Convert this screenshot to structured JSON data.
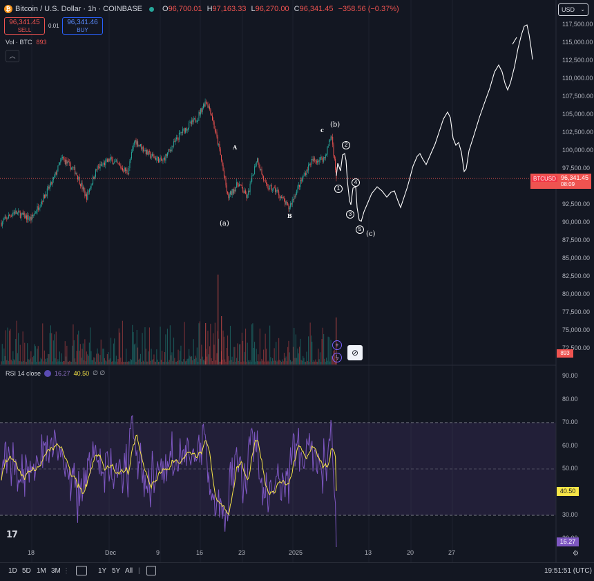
{
  "header": {
    "coin_icon": "bitcoin-icon",
    "coin_glyph": "₿",
    "title": "Bitcoin / U.S. Dollar · 1h · COINBASE",
    "ohlc": {
      "o_label": "O",
      "o": "96,700.01",
      "h_label": "H",
      "h": "97,163.33",
      "l_label": "L",
      "l": "96,270.00",
      "c_label": "C",
      "c": "96,341.45",
      "change": "−358.56 (−0.37%)"
    },
    "sell": {
      "price": "96,341.45",
      "label": "SELL"
    },
    "buy": {
      "price": "96,341.46",
      "label": "BUY"
    },
    "spread": "0.01",
    "volume": {
      "label": "Vol · BTC",
      "value": "893"
    }
  },
  "currency_select": {
    "value": "USD",
    "icon": "chevron-down-icon"
  },
  "price_axis": [
    "117,500.00",
    "115,000.00",
    "112,500.00",
    "110,000.00",
    "107,500.00",
    "105,000.00",
    "102,500.00",
    "100,000.00",
    "97,500.00",
    "92,500.00",
    "90,000.00",
    "87,500.00",
    "85,000.00",
    "82,500.00",
    "80,000.00",
    "77,500.00",
    "75,000.00",
    "72,500.00"
  ],
  "price_values": [
    117500,
    115000,
    112500,
    110000,
    107500,
    105000,
    102500,
    100000,
    97500,
    92500,
    90000,
    87500,
    85000,
    82500,
    80000,
    77500,
    75000,
    72500
  ],
  "last_price_tag": {
    "symbol": "BTCUSD",
    "price": "96,341.45",
    "countdown": "08:09"
  },
  "volume_tag": "893",
  "rsi": {
    "legend": {
      "label": "RSI 14 close",
      "value_a": "16.27",
      "value_b": "40.50",
      "extra": "∅ ∅"
    },
    "axis": [
      "90.00",
      "80.00",
      "70.00",
      "60.00",
      "50.00",
      "30.00",
      "20.00"
    ],
    "axis_values": [
      90,
      80,
      70,
      60,
      50,
      30,
      20
    ],
    "tag_ma": "40.50",
    "tag_rsi": "16.27",
    "colors": {
      "rsi": "#7e57c2",
      "ma": "#f7e547",
      "band": "#7e57c2"
    }
  },
  "time_axis": [
    {
      "label": "18"
    },
    {
      "label": "Dec"
    },
    {
      "label": "9"
    },
    {
      "label": "16"
    },
    {
      "label": "23"
    },
    {
      "label": "2025"
    },
    {
      "label": "13"
    },
    {
      "label": "20"
    },
    {
      "label": "27"
    }
  ],
  "wave_labels": {
    "a": "(a)",
    "A": "A",
    "B": "B",
    "c_small": "c",
    "b": "(b)",
    "c": "(c)",
    "w1": "1",
    "w2": "2",
    "w3": "3",
    "w4": "4",
    "w5": "5"
  },
  "range_buttons": [
    "1D",
    "5D",
    "1M",
    "3M",
    "1Y",
    "5Y",
    "All"
  ],
  "clock": "19:51:51 (UTC)",
  "tv_logo": "17",
  "colors": {
    "up": "#26a69a",
    "down": "#ef5350",
    "background": "#131722",
    "projection": "#ffffff"
  }
}
